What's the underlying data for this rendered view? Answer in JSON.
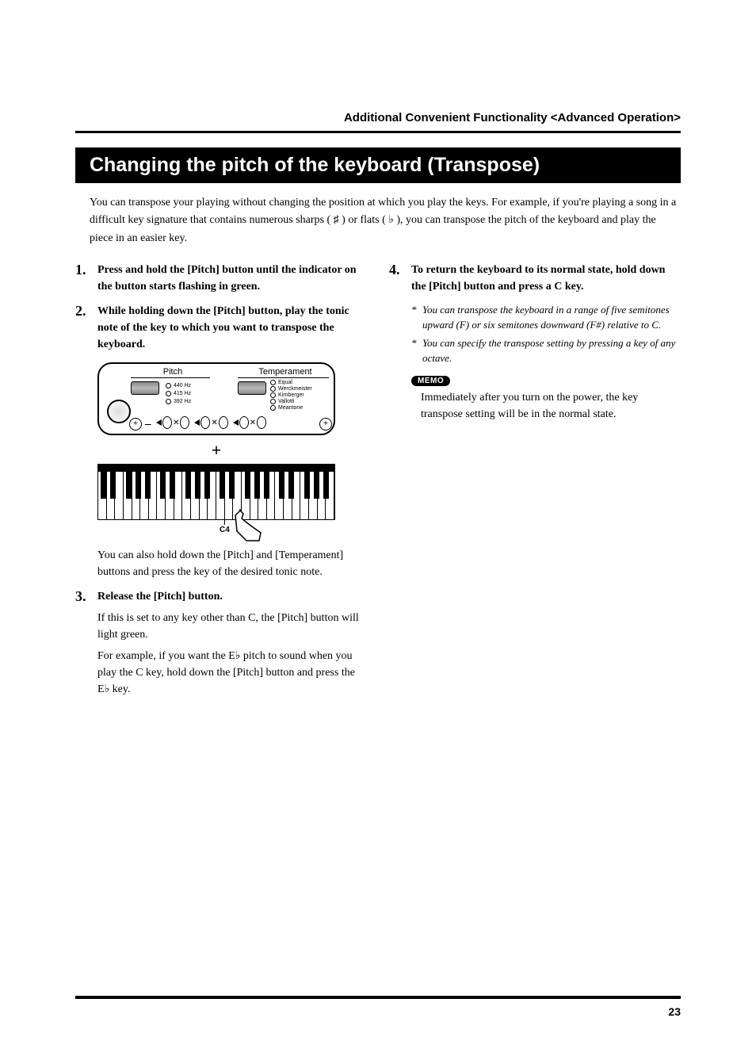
{
  "breadcrumb": "Additional Convenient Functionality <Advanced Operation>",
  "title": "Changing the pitch of the keyboard (Transpose)",
  "intro_parts": {
    "a": "You can transpose your playing without changing the position at which you play the keys. For example, if you're playing a song in a difficult key signature that contains numerous sharps ( ",
    "sharp": "♯",
    "b": " ) or flats ( ",
    "flat": "♭",
    "c": " ), you can transpose the pitch of the keyboard and play the piece in an easier key."
  },
  "steps": {
    "s1": {
      "n": "1.",
      "text": "Press and hold the [Pitch] button until the indicator on the button starts flashing in green."
    },
    "s2": {
      "n": "2.",
      "text": "While holding down the [Pitch] button, play the tonic note of the key to which you want to transpose the keyboard."
    },
    "s2_after": "You can also hold down the [Pitch] and [Temperament] buttons and press the key of the desired tonic note.",
    "s3": {
      "n": "3.",
      "bold": "Release the [Pitch] button.",
      "p1": "If this is set to any key other than C, the [Pitch] button will light green.",
      "p2a": "For example, if you want the E",
      "p2flat": "♭",
      "p2b": " pitch to sound when you play the C key, hold down the [Pitch] button and press the E",
      "p2flat2": "♭",
      "p2c": " key."
    },
    "s4": {
      "n": "4.",
      "text": "To return the keyboard to its normal state, hold down the [Pitch] button and press a C key."
    }
  },
  "notes": {
    "n1": "You can transpose the keyboard in a range of five semitones upward (F) or six semitones downward (F#) relative to C.",
    "n2": "You can specify the transpose setting by pressing a key of any octave."
  },
  "memo": {
    "badge": "MEMO",
    "text": "Immediately after you turn on the power, the key transpose setting will be in the normal state."
  },
  "panel": {
    "pitch_label": "Pitch",
    "temp_label": "Temperament",
    "hz": {
      "a": "440 Hz",
      "b": "415 Hz",
      "c": "392 Hz"
    },
    "temperaments": {
      "a": "Equal",
      "b": "Werckmeister",
      "c": "Kirnberger",
      "d": "Vallotti",
      "e": "Meantone"
    }
  },
  "kbd": {
    "c4": "C4"
  },
  "page_number": "23",
  "colors": {
    "bg": "#ffffff",
    "fg": "#000000"
  }
}
